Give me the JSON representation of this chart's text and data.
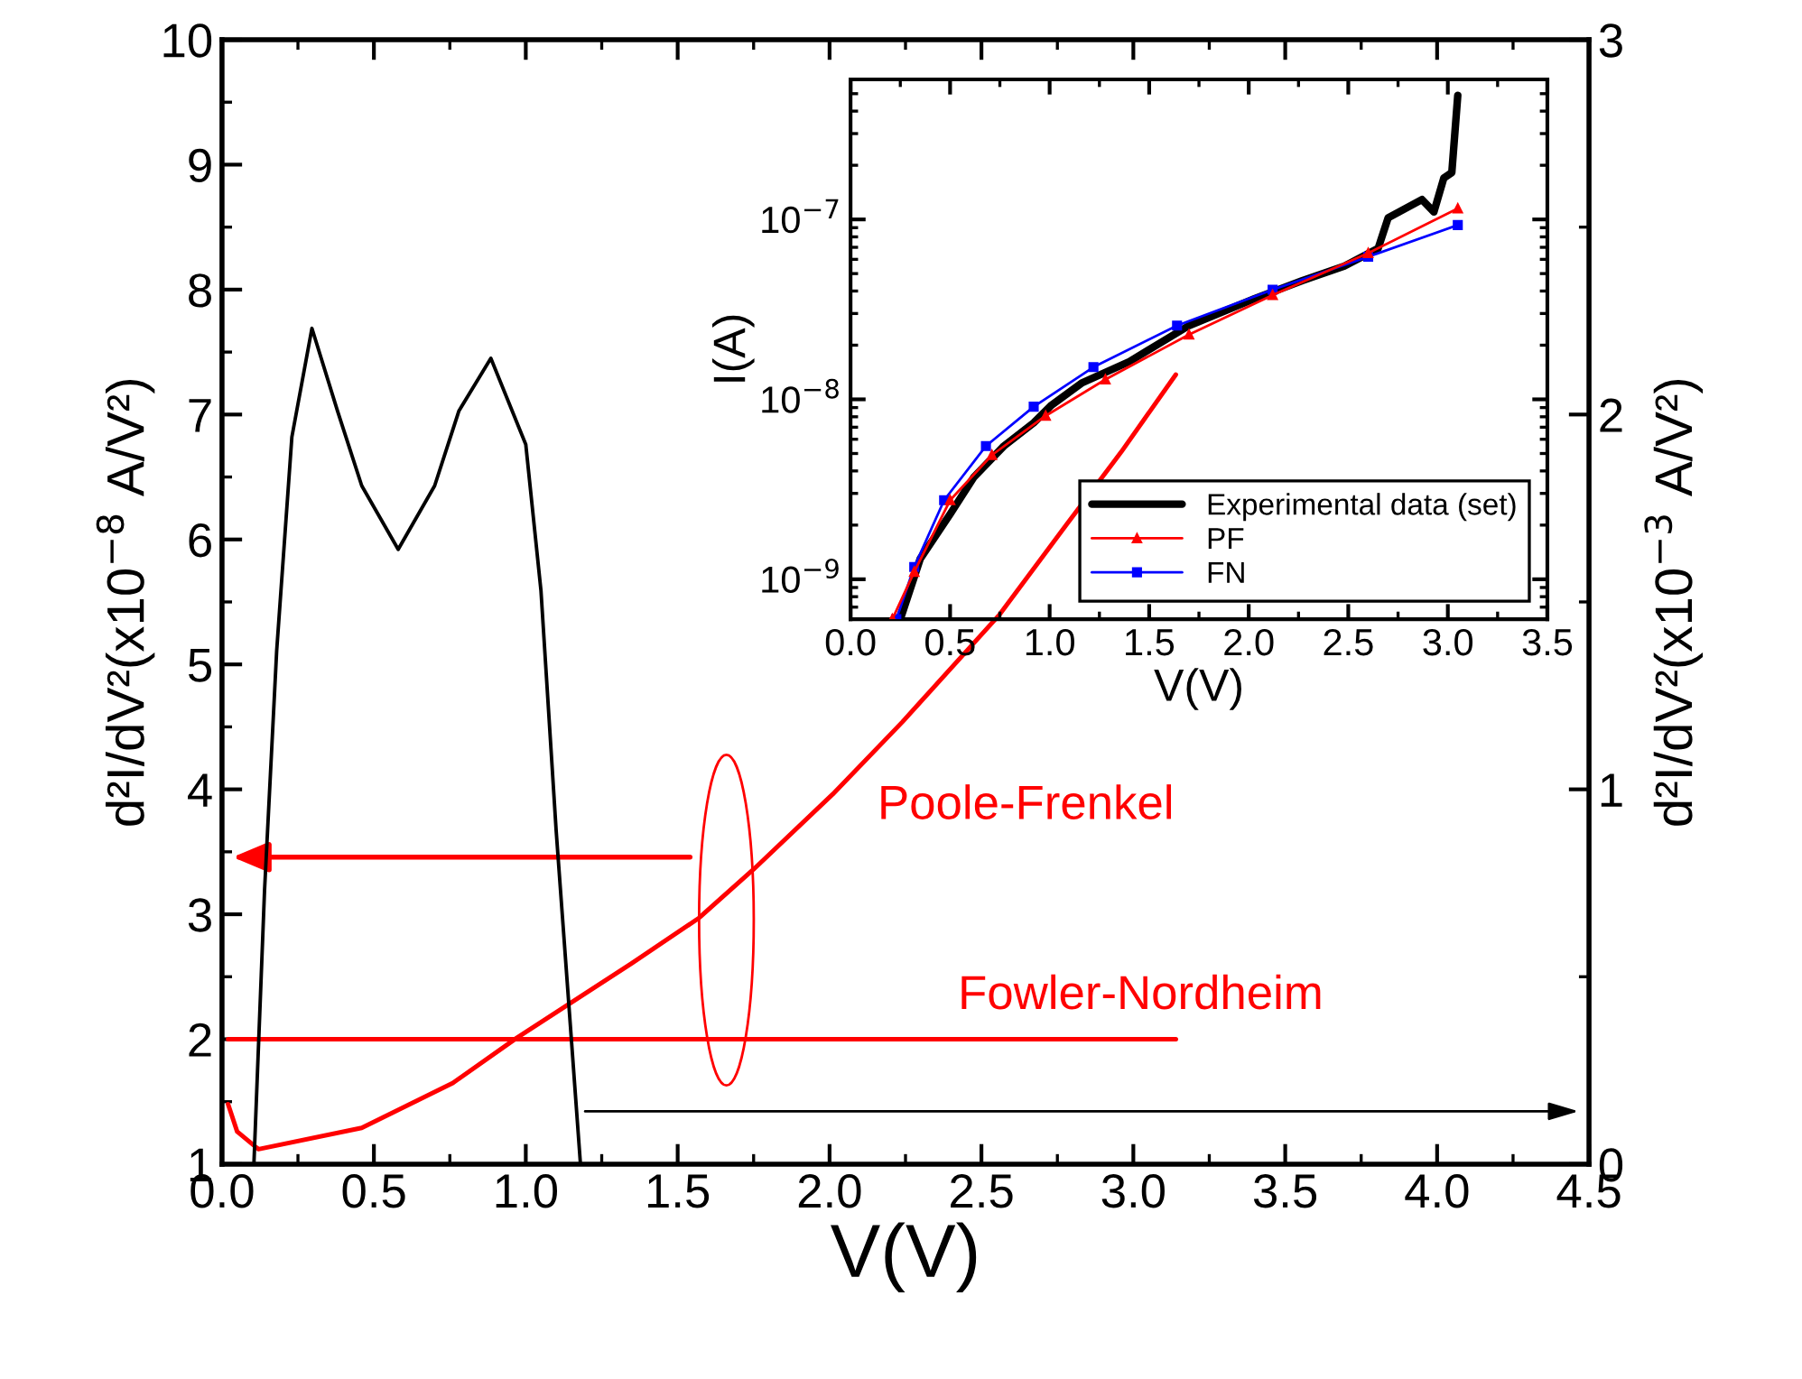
{
  "chart_data": [
    {
      "type": "line",
      "xlabel": "V(V)",
      "ylabel": "d²I/dV²(x10$^{−8}$ A/V²)",
      "y2label": "d²I/dV²(x10$^{−3}$ A/V²)",
      "xlim": [
        0,
        4.5
      ],
      "xticks": [
        {
          "value": 0,
          "label": "0.0"
        },
        0.5,
        {
          "value": 1,
          "label": "1.0"
        },
        1.5,
        {
          "value": 2,
          "label": "2.0"
        },
        2.5,
        {
          "value": 3,
          "label": "3.0"
        },
        3.5,
        {
          "value": 4,
          "label": "4.0"
        },
        4.5
      ],
      "ylim": [
        1,
        10
      ],
      "yticks": [
        1,
        2,
        3,
        4,
        5,
        6,
        7,
        8,
        9,
        10
      ],
      "y2lim": [
        0,
        3
      ],
      "y2ticks": [
        0,
        1,
        2,
        3
      ],
      "grid": false,
      "legend": false,
      "series": [
        {
          "color": "#000000",
          "axis": "y2",
          "x": [
            0.105,
            0.14,
            0.18,
            0.23,
            0.296,
            0.38,
            0.46,
            0.58,
            0.7,
            0.78,
            0.885,
            1.0,
            1.05,
            1.1,
            1.18
          ],
          "values": [
            0,
            0.73,
            1.37,
            1.94,
            2.23,
            2.01,
            1.81,
            1.64,
            1.81,
            2.01,
            2.15,
            1.92,
            1.53,
            0.89,
            0
          ]
        },
        {
          "name": "Poole-Frenkel",
          "color": "#ff0000",
          "x": [
            0.02,
            0.05,
            0.12,
            0.46,
            0.76,
            0.97,
            1.35,
            1.57,
            1.75,
            2.01,
            2.24,
            2.56,
            2.78,
            2.96,
            3.14
          ],
          "values": [
            1.48,
            1.26,
            1.12,
            1.29,
            1.65,
            2.01,
            2.61,
            2.97,
            3.36,
            3.96,
            4.54,
            5.4,
            6.12,
            6.7,
            7.32
          ]
        },
        {
          "name": "Fowler-Nordheim",
          "color": "#ff0000",
          "x": [
            0.02,
            3.14
          ],
          "values": [
            2,
            2
          ]
        }
      ]
    },
    {
      "type": "line",
      "xlabel": "V(V)",
      "ylabel": "I(A)",
      "log": "y",
      "xlim": [
        0,
        3.5
      ],
      "xticks": [
        {
          "value": 0,
          "label": "0.0"
        },
        0.5,
        {
          "value": 1,
          "label": "1.0"
        },
        1.5,
        {
          "value": 2,
          "label": "2.0"
        },
        2.5,
        {
          "value": 3,
          "label": "3.0"
        },
        3.5
      ],
      "ylim": [
        6e-10,
        6e-07
      ],
      "yticks": [
        {
          "value": 1e-09,
          "label": "10$^{−9}$"
        },
        {
          "value": 1e-08,
          "label": "10$^{−8}$"
        },
        {
          "value": 1e-07,
          "label": "10$^{−7}$"
        }
      ],
      "grid": false,
      "legend": "bottom right",
      "series": [
        {
          "name": "Experimental data (set)",
          "color": "#000000",
          "marker": "none",
          "x": [
            0.25,
            0.35,
            0.5,
            0.62,
            0.77,
            0.92,
            1.01,
            1.16,
            1.4,
            1.7,
            2.03,
            2.27,
            2.48,
            2.65,
            2.7,
            2.87,
            2.93,
            2.98,
            3.02,
            3.05
          ],
          "values": [
            6e-10,
            1.3e-09,
            2.3e-09,
            3.7e-09,
            5.5e-09,
            7.4e-09,
            9.3e-09,
            1.23e-08,
            1.62e-08,
            2.57e-08,
            3.63e-08,
            4.57e-08,
            5.5e-08,
            6.9e-08,
            1.02e-07,
            1.29e-07,
            1.1e-07,
            1.7e-07,
            1.82e-07,
            4.9e-07
          ]
        },
        {
          "name": "PF",
          "color": "#ff0000",
          "marker": "triangle",
          "x": [
            0.21,
            0.32,
            0.5,
            0.71,
            0.98,
            1.28,
            1.7,
            2.12,
            2.6,
            3.05
          ],
          "values": [
            6e-10,
            1.1e-09,
            2.75e-09,
            4.9e-09,
            8.1e-09,
            1.29e-08,
            2.29e-08,
            3.8e-08,
            6.5e-08,
            1.15e-07
          ]
        },
        {
          "name": "FN",
          "color": "#0000ff",
          "marker": "square",
          "x": [
            0.23,
            0.32,
            0.47,
            0.68,
            0.92,
            1.22,
            1.64,
            2.12,
            2.6,
            3.05
          ],
          "values": [
            6e-10,
            1.17e-09,
            2.75e-09,
            5.5e-09,
            9.1e-09,
            1.51e-08,
            2.57e-08,
            4.07e-08,
            6.2e-08,
            9.3e-08
          ]
        }
      ]
    }
  ]
}
